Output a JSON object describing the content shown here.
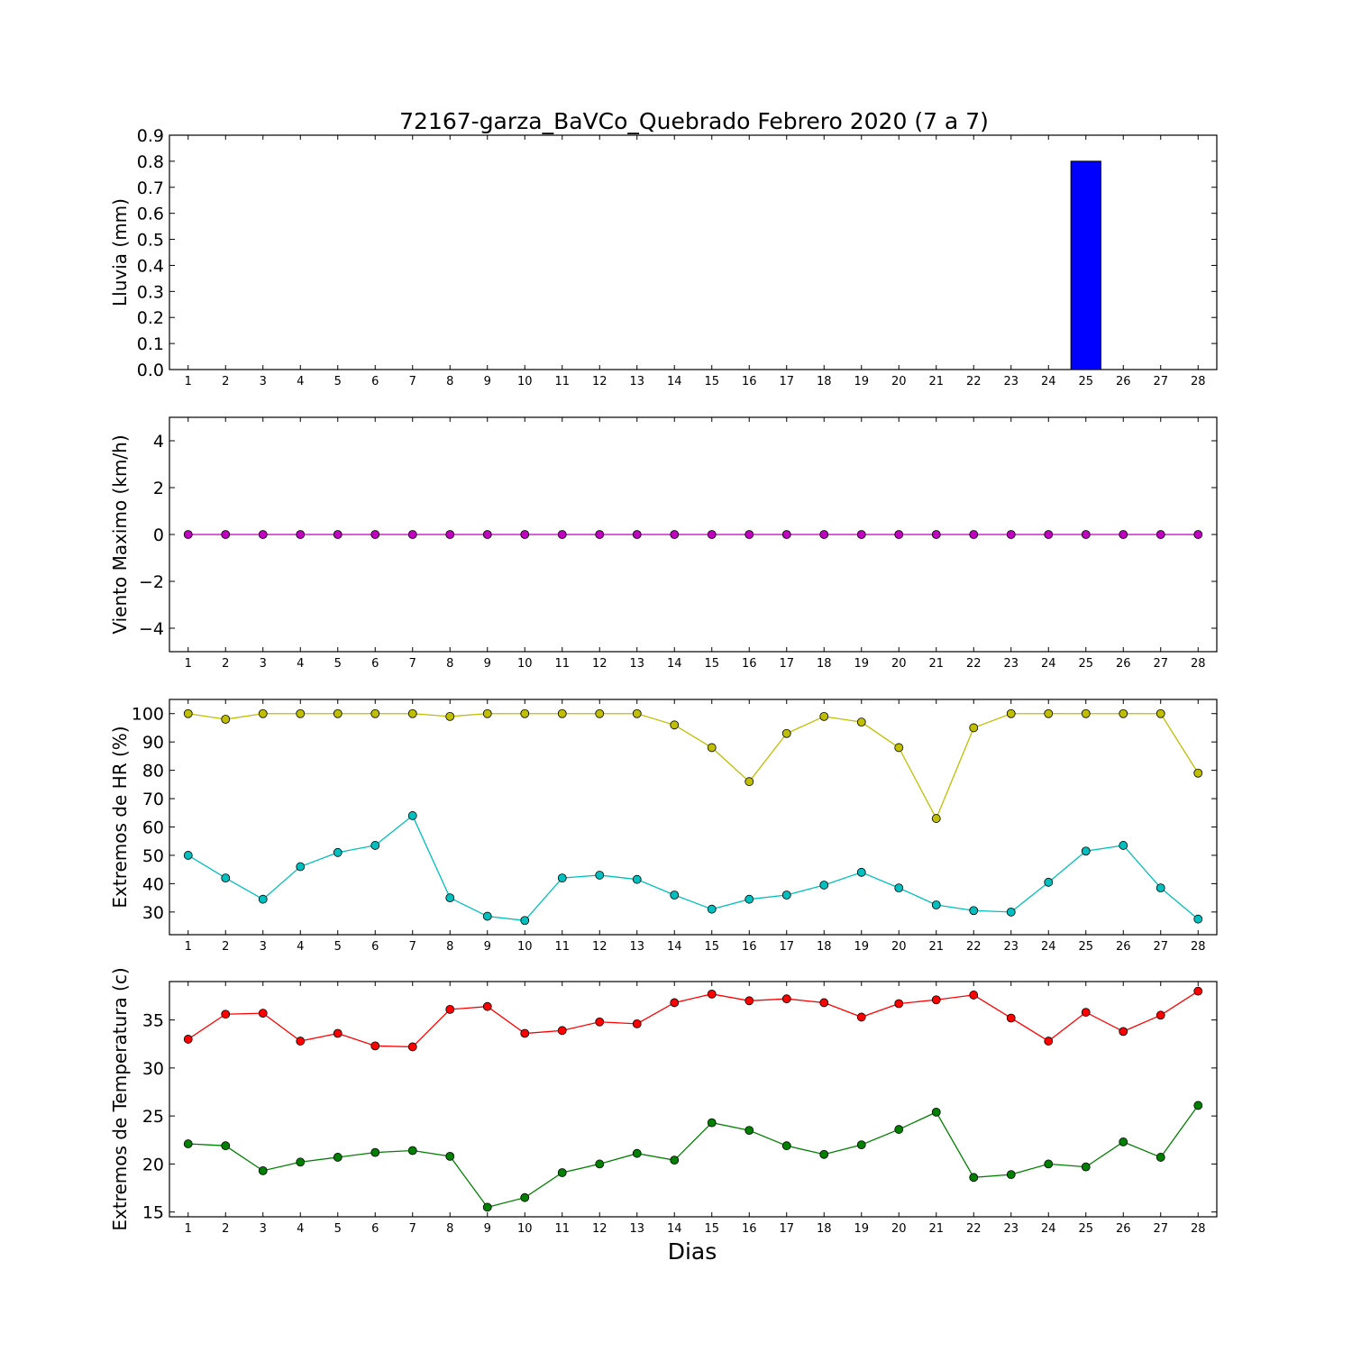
{
  "title": "72167-garza_BaVCo_Quebrado Febrero 2020  (7 a 7)",
  "xlabel": "Dias",
  "chart_data": [
    {
      "type": "bar",
      "ylabel": "Lluvia (mm)",
      "ylim": [
        0,
        0.9
      ],
      "yticks": [
        "0.0",
        "0.1",
        "0.2",
        "0.3",
        "0.4",
        "0.5",
        "0.6",
        "0.7",
        "0.8",
        "0.9"
      ],
      "categories": [
        "1",
        "2",
        "3",
        "4",
        "5",
        "6",
        "7",
        "8",
        "9",
        "10",
        "11",
        "12",
        "13",
        "14",
        "15",
        "16",
        "17",
        "18",
        "19",
        "20",
        "21",
        "22",
        "23",
        "24",
        "25",
        "26",
        "27",
        "28"
      ],
      "series": [
        {
          "values": [
            0,
            0,
            0,
            0,
            0,
            0,
            0,
            0,
            0,
            0,
            0,
            0,
            0,
            0,
            0,
            0,
            0,
            0,
            0,
            0,
            0,
            0,
            0,
            0,
            0.8,
            0,
            0,
            0
          ],
          "color": "#0000ff"
        }
      ]
    },
    {
      "type": "line",
      "ylabel": "Viento Maximo (km/h)",
      "ylim": [
        -5,
        5
      ],
      "yticks": [
        "−4",
        "−2",
        "0",
        "2",
        "4"
      ],
      "categories": [
        "1",
        "2",
        "3",
        "4",
        "5",
        "6",
        "7",
        "8",
        "9",
        "10",
        "11",
        "12",
        "13",
        "14",
        "15",
        "16",
        "17",
        "18",
        "19",
        "20",
        "21",
        "22",
        "23",
        "24",
        "25",
        "26",
        "27",
        "28"
      ],
      "series": [
        {
          "values": [
            0,
            0,
            0,
            0,
            0,
            0,
            0,
            0,
            0,
            0,
            0,
            0,
            0,
            0,
            0,
            0,
            0,
            0,
            0,
            0,
            0,
            0,
            0,
            0,
            0,
            0,
            0,
            0
          ],
          "color": "#bf00bf"
        }
      ]
    },
    {
      "type": "line",
      "ylabel": "Extremos de HR (%)",
      "ylim": [
        22,
        105
      ],
      "yticks": [
        "30",
        "40",
        "50",
        "60",
        "70",
        "80",
        "90",
        "100"
      ],
      "categories": [
        "1",
        "2",
        "3",
        "4",
        "5",
        "6",
        "7",
        "8",
        "9",
        "10",
        "11",
        "12",
        "13",
        "14",
        "15",
        "16",
        "17",
        "18",
        "19",
        "20",
        "21",
        "22",
        "23",
        "24",
        "25",
        "26",
        "27",
        "28"
      ],
      "series": [
        {
          "values": [
            100,
            98,
            100,
            100,
            100,
            100,
            100,
            99,
            100,
            100,
            100,
            100,
            100,
            96,
            88,
            76,
            93,
            99,
            97,
            88,
            63,
            95,
            100,
            100,
            100,
            100,
            100,
            79
          ],
          "color": "#bfbf00"
        },
        {
          "values": [
            50,
            42,
            34.5,
            46,
            51,
            53.5,
            64,
            35,
            28.5,
            27,
            42,
            43,
            41.5,
            36,
            31,
            34.5,
            36,
            39.5,
            44,
            38.5,
            32.5,
            30.5,
            30,
            40.5,
            51.5,
            53.5,
            38.5,
            27.5
          ],
          "color": "#00bfbf"
        }
      ]
    },
    {
      "type": "line",
      "ylabel": "Extremos de Temperatura (c)",
      "ylim": [
        14.5,
        39
      ],
      "yticks": [
        "15",
        "20",
        "25",
        "30",
        "35"
      ],
      "categories": [
        "1",
        "2",
        "3",
        "4",
        "5",
        "6",
        "7",
        "8",
        "9",
        "10",
        "11",
        "12",
        "13",
        "14",
        "15",
        "16",
        "17",
        "18",
        "19",
        "20",
        "21",
        "22",
        "23",
        "24",
        "25",
        "26",
        "27",
        "28"
      ],
      "series": [
        {
          "values": [
            33,
            35.6,
            35.7,
            32.8,
            33.6,
            32.3,
            32.2,
            36.1,
            36.4,
            33.6,
            33.9,
            34.8,
            34.6,
            36.8,
            37.7,
            37,
            37.2,
            36.8,
            35.3,
            36.7,
            37.1,
            37.6,
            35.2,
            32.8,
            35.8,
            33.8,
            35.5,
            38
          ],
          "color": "#ff0000"
        },
        {
          "values": [
            22.1,
            21.9,
            19.3,
            20.2,
            20.7,
            21.2,
            21.4,
            20.8,
            15.5,
            16.5,
            19.1,
            20,
            21.1,
            20.4,
            24.3,
            23.5,
            21.9,
            21,
            22,
            23.6,
            25.4,
            18.6,
            18.9,
            20,
            19.7,
            22.3,
            20.7,
            26.1
          ],
          "color": "#008000"
        }
      ]
    }
  ]
}
